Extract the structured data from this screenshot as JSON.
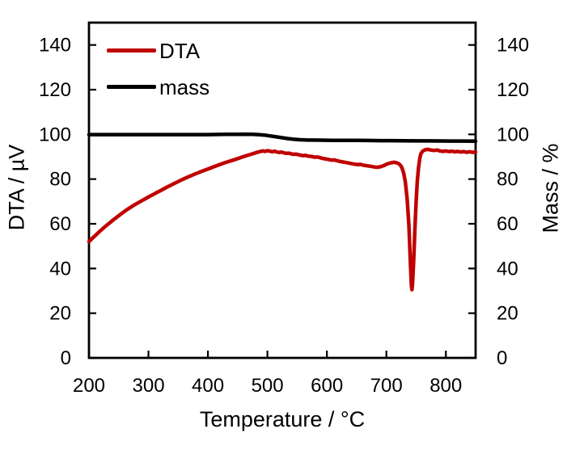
{
  "chart_data": {
    "type": "line",
    "title": "",
    "xlabel": "Temperature / °C",
    "ylabel_left": "DTA / µV",
    "ylabel_right": "Mass / %",
    "xlim": [
      200,
      850
    ],
    "ylim_left": [
      0,
      150
    ],
    "ylim_right": [
      0,
      150
    ],
    "xticks": [
      200,
      300,
      400,
      500,
      600,
      700,
      800
    ],
    "yticks_left": [
      0,
      20,
      40,
      60,
      80,
      100,
      120,
      140
    ],
    "yticks_right": [
      0,
      20,
      40,
      60,
      80,
      100,
      120,
      140
    ],
    "grid": false,
    "legend_position": "top-left-inside",
    "frame_color": "#000000",
    "series": [
      {
        "name": "DTA",
        "axis": "left",
        "color": "#c00000",
        "width": 4.5,
        "points": [
          [
            200,
            52.0
          ],
          [
            206,
            53.6
          ],
          [
            212,
            55.1
          ],
          [
            218,
            56.6
          ],
          [
            224,
            58.0
          ],
          [
            230,
            59.4
          ],
          [
            236,
            60.7
          ],
          [
            242,
            62.0
          ],
          [
            248,
            63.2
          ],
          [
            254,
            64.4
          ],
          [
            260,
            65.6
          ],
          [
            266,
            66.7
          ],
          [
            272,
            67.7
          ],
          [
            278,
            68.7
          ],
          [
            284,
            69.6
          ],
          [
            290,
            70.5
          ],
          [
            296,
            71.4
          ],
          [
            302,
            72.3
          ],
          [
            308,
            73.1
          ],
          [
            314,
            74.0
          ],
          [
            320,
            74.8
          ],
          [
            326,
            75.7
          ],
          [
            332,
            76.5
          ],
          [
            338,
            77.3
          ],
          [
            344,
            78.1
          ],
          [
            350,
            78.9
          ],
          [
            356,
            79.7
          ],
          [
            362,
            80.4
          ],
          [
            368,
            81.1
          ],
          [
            374,
            81.8
          ],
          [
            380,
            82.5
          ],
          [
            386,
            83.1
          ],
          [
            392,
            83.7
          ],
          [
            398,
            84.3
          ],
          [
            404,
            84.9
          ],
          [
            410,
            85.5
          ],
          [
            416,
            86.1
          ],
          [
            422,
            86.7
          ],
          [
            428,
            87.3
          ],
          [
            434,
            87.8
          ],
          [
            440,
            88.3
          ],
          [
            446,
            88.8
          ],
          [
            452,
            89.3
          ],
          [
            458,
            89.9
          ],
          [
            464,
            90.4
          ],
          [
            470,
            90.9
          ],
          [
            476,
            91.4
          ],
          [
            482,
            91.9
          ],
          [
            488,
            92.3
          ],
          [
            492,
            92.6
          ],
          [
            496,
            92.4
          ],
          [
            500,
            92.7
          ],
          [
            504,
            92.5
          ],
          [
            508,
            92.2
          ],
          [
            512,
            92.5
          ],
          [
            516,
            92.1
          ],
          [
            520,
            91.9
          ],
          [
            524,
            92.1
          ],
          [
            528,
            91.7
          ],
          [
            532,
            91.5
          ],
          [
            536,
            91.6
          ],
          [
            540,
            91.3
          ],
          [
            544,
            91.1
          ],
          [
            548,
            91.2
          ],
          [
            552,
            90.9
          ],
          [
            556,
            90.7
          ],
          [
            560,
            90.5
          ],
          [
            564,
            90.6
          ],
          [
            568,
            90.3
          ],
          [
            572,
            90.2
          ],
          [
            576,
            90.0
          ],
          [
            580,
            89.8
          ],
          [
            584,
            89.9
          ],
          [
            588,
            89.6
          ],
          [
            592,
            89.3
          ],
          [
            596,
            89.1
          ],
          [
            600,
            88.9
          ],
          [
            604,
            88.7
          ],
          [
            608,
            88.5
          ],
          [
            612,
            88.6
          ],
          [
            616,
            88.3
          ],
          [
            620,
            88.0
          ],
          [
            624,
            87.8
          ],
          [
            628,
            87.6
          ],
          [
            632,
            87.4
          ],
          [
            636,
            87.2
          ],
          [
            640,
            87.0
          ],
          [
            644,
            86.8
          ],
          [
            648,
            86.6
          ],
          [
            652,
            86.5
          ],
          [
            656,
            86.6
          ],
          [
            660,
            86.3
          ],
          [
            664,
            86.1
          ],
          [
            668,
            85.9
          ],
          [
            672,
            85.8
          ],
          [
            676,
            85.6
          ],
          [
            680,
            85.4
          ],
          [
            684,
            85.3
          ],
          [
            688,
            85.4
          ],
          [
            692,
            85.7
          ],
          [
            696,
            86.1
          ],
          [
            700,
            86.6
          ],
          [
            704,
            87.0
          ],
          [
            708,
            87.3
          ],
          [
            712,
            87.5
          ],
          [
            716,
            87.4
          ],
          [
            720,
            87.0
          ],
          [
            723,
            86.4
          ],
          [
            726,
            85.2
          ],
          [
            729,
            82.8
          ],
          [
            732,
            78.5
          ],
          [
            735,
            71.0
          ],
          [
            738,
            59.0
          ],
          [
            740,
            45.0
          ],
          [
            742,
            32.5
          ],
          [
            743,
            30.5
          ],
          [
            744,
            33.0
          ],
          [
            746,
            44.0
          ],
          [
            748,
            58.0
          ],
          [
            750,
            70.0
          ],
          [
            752,
            79.0
          ],
          [
            754,
            85.0
          ],
          [
            756,
            89.0
          ],
          [
            758,
            91.3
          ],
          [
            761,
            92.5
          ],
          [
            765,
            93.1
          ],
          [
            770,
            93.3
          ],
          [
            775,
            93.0
          ],
          [
            780,
            92.8
          ],
          [
            785,
            93.0
          ],
          [
            790,
            92.6
          ],
          [
            795,
            92.4
          ],
          [
            800,
            92.6
          ],
          [
            805,
            92.3
          ],
          [
            810,
            92.5
          ],
          [
            815,
            92.2
          ],
          [
            820,
            92.4
          ],
          [
            825,
            92.1
          ],
          [
            830,
            92.3
          ],
          [
            835,
            92.0
          ],
          [
            840,
            92.2
          ],
          [
            845,
            92.0
          ],
          [
            850,
            92.1
          ]
        ]
      },
      {
        "name": "mass",
        "axis": "right",
        "color": "#000000",
        "width": 4.5,
        "points": [
          [
            200,
            99.9
          ],
          [
            240,
            99.9
          ],
          [
            280,
            99.9
          ],
          [
            320,
            99.9
          ],
          [
            360,
            99.9
          ],
          [
            400,
            99.9
          ],
          [
            430,
            100.0
          ],
          [
            450,
            100.0
          ],
          [
            465,
            100.1
          ],
          [
            475,
            100.0
          ],
          [
            485,
            99.9
          ],
          [
            495,
            99.7
          ],
          [
            505,
            99.3
          ],
          [
            515,
            98.9
          ],
          [
            525,
            98.5
          ],
          [
            535,
            98.1
          ],
          [
            545,
            97.8
          ],
          [
            555,
            97.6
          ],
          [
            565,
            97.5
          ],
          [
            575,
            97.45
          ],
          [
            590,
            97.4
          ],
          [
            610,
            97.35
          ],
          [
            630,
            97.3
          ],
          [
            650,
            97.3
          ],
          [
            670,
            97.25
          ],
          [
            690,
            97.2
          ],
          [
            710,
            97.2
          ],
          [
            730,
            97.15
          ],
          [
            750,
            97.1
          ],
          [
            770,
            97.1
          ],
          [
            790,
            97.05
          ],
          [
            810,
            97.0
          ],
          [
            830,
            97.0
          ],
          [
            850,
            96.95
          ]
        ]
      }
    ]
  }
}
